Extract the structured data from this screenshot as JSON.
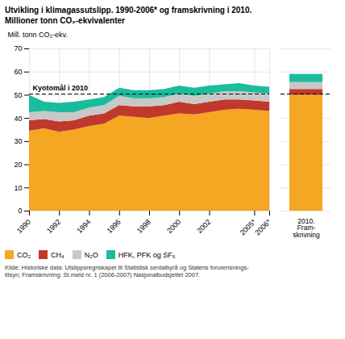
{
  "chart_data": [
    {
      "type": "area",
      "stacked": true,
      "title": "Utvikling i klimagassutslipp. 1990-2006* og framskrivning i 2010.",
      "subtitle": "Millioner tonn CO₂-ekvivalenter",
      "ylabel": "Mill. tonn CO₂-ekv.",
      "x": [
        1990,
        1991,
        1992,
        1993,
        1994,
        1995,
        1996,
        1997,
        1998,
        1999,
        2000,
        2001,
        2002,
        2003,
        2004,
        2005,
        2006
      ],
      "series": [
        {
          "name": "CO₂",
          "color": "#F5A623",
          "values": [
            34.5,
            35.5,
            34.0,
            35.0,
            36.5,
            37.5,
            41.0,
            40.5,
            40.0,
            41.0,
            42.0,
            41.5,
            42.5,
            43.5,
            44.0,
            43.5,
            43.0
          ]
        },
        {
          "name": "CH₄",
          "color": "#C0392B",
          "values": [
            4.5,
            4.0,
            4.5,
            4.0,
            4.5,
            4.5,
            4.5,
            4.5,
            5.0,
            4.5,
            5.0,
            4.5,
            4.5,
            4.5,
            4.0,
            4.0,
            4.0
          ]
        },
        {
          "name": "N₂O",
          "color": "#C8C8C8",
          "values": [
            3.5,
            3.5,
            4.0,
            3.5,
            3.5,
            3.5,
            4.0,
            3.5,
            3.5,
            3.5,
            3.5,
            3.5,
            3.5,
            3.5,
            3.5,
            3.5,
            3.5
          ]
        },
        {
          "name": "HFK, PFK og SF₆",
          "color": "#1ABC9C",
          "values": [
            7.5,
            4.0,
            4.0,
            4.5,
            3.5,
            3.5,
            3.5,
            3.5,
            3.5,
            3.5,
            3.5,
            3.5,
            3.5,
            3.0,
            3.5,
            3.0,
            3.0
          ]
        }
      ],
      "xlim": [
        1990,
        2006
      ],
      "xticks": [
        1990,
        1992,
        1994,
        1996,
        1998,
        2000,
        2002,
        {
          "value": 2005,
          "label": "2005*"
        },
        {
          "value": 2006,
          "label": "2006*"
        }
      ],
      "ylim": [
        0,
        70
      ],
      "yticks": [
        0,
        10,
        20,
        30,
        40,
        50,
        60,
        70
      ],
      "grid": true,
      "legend": "lower left",
      "annotations": [
        {
          "text": "Kyotomål i 2010",
          "y": 50.5,
          "line_style": "dashed"
        }
      ],
      "caption": "Kilde: Historiske data: Utslippsregnskapet til Statistisk sentalbyrå og Statens forurensnings-\ntilsyn; Framskrivning: St.meld nr. 1 (2006-2007) Nasjonalbudsjettet 2007."
    },
    {
      "type": "bar",
      "stacked": true,
      "categories": [
        "2010.\nFram-\nskrivning"
      ],
      "series": [
        {
          "name": "CO₂",
          "color": "#F5A623",
          "values": [
            50.0
          ]
        },
        {
          "name": "CH₄",
          "color": "#C0392B",
          "values": [
            2.5
          ]
        },
        {
          "name": "N₂O",
          "color": "#C8C8C8",
          "values": [
            3.0
          ]
        },
        {
          "name": "HFK, PFK og SF₆",
          "color": "#1ABC9C",
          "values": [
            3.5
          ]
        }
      ],
      "ylim": [
        0,
        70
      ],
      "yticks": [
        0,
        10,
        20,
        30,
        40,
        50,
        60,
        70
      ],
      "grid": true,
      "tick_labels": "x",
      "annotations": [
        {
          "y": 50.5,
          "line_style": "dashed"
        }
      ]
    }
  ]
}
